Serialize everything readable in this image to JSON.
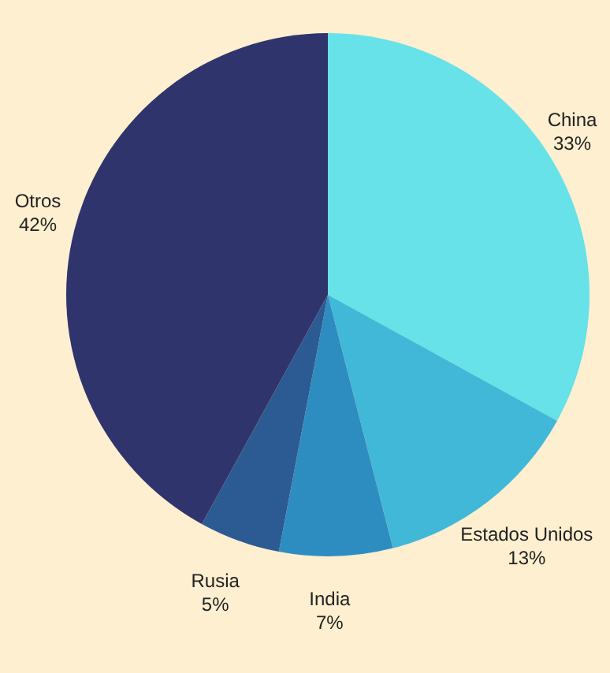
{
  "chart_data": {
    "type": "pie",
    "categories": [
      "China",
      "Estados Unidos",
      "India",
      "Rusia",
      "Otros"
    ],
    "values": [
      33,
      13,
      7,
      5,
      42
    ],
    "colors": [
      "#66e2e8",
      "#42b8d8",
      "#2e8dc0",
      "#2c5b94",
      "#30346c"
    ],
    "value_labels": [
      "33%",
      "13%",
      "7%",
      "5%",
      "42%"
    ]
  }
}
